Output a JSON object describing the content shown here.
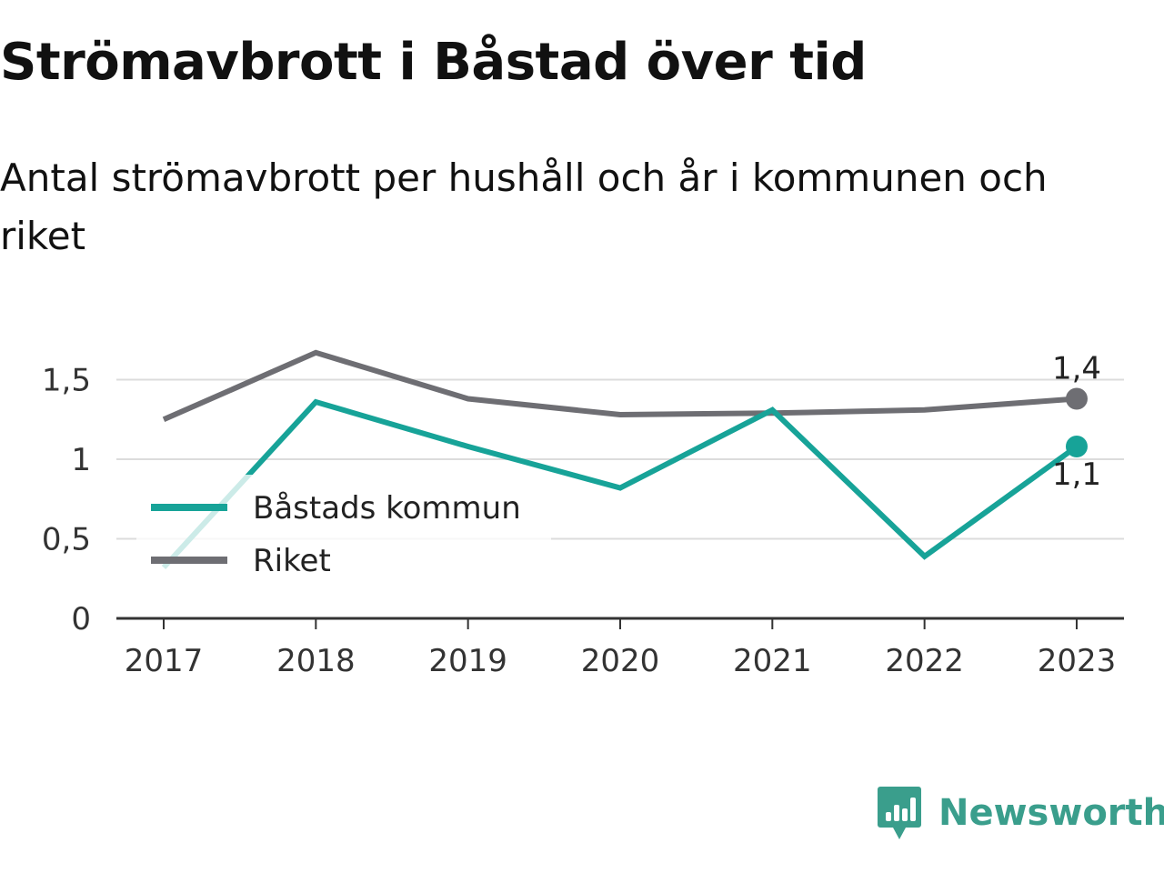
{
  "title": "Strömavbrott i Båstad över tid",
  "subtitle": "Antal strömavbrott per hushåll och år i kommunen och riket",
  "brand": {
    "name": "Newsworthy",
    "icon": "newsworthy-logo-icon",
    "color": "#3a9e8c"
  },
  "chart_data": {
    "type": "line",
    "title": "Strömavbrott i Båstad över tid",
    "subtitle": "Antal strömavbrott per hushåll och år i kommunen och riket",
    "x": [
      "2017",
      "2018",
      "2019",
      "2020",
      "2021",
      "2022",
      "2023"
    ],
    "yticks": [
      "0",
      "0,5",
      "1",
      "1,5"
    ],
    "ylim": [
      0,
      1.5
    ],
    "grid": true,
    "legend_position": "bottom-left",
    "series": [
      {
        "name": "Båstads kommun",
        "color": "#17a398",
        "values": [
          0.32,
          1.36,
          1.08,
          0.82,
          1.31,
          0.39,
          1.08
        ],
        "end_label": "1,1"
      },
      {
        "name": "Riket",
        "color": "#6e6e73",
        "values": [
          1.25,
          1.67,
          1.38,
          1.28,
          1.29,
          1.31,
          1.38
        ],
        "end_label": "1,4"
      }
    ]
  }
}
